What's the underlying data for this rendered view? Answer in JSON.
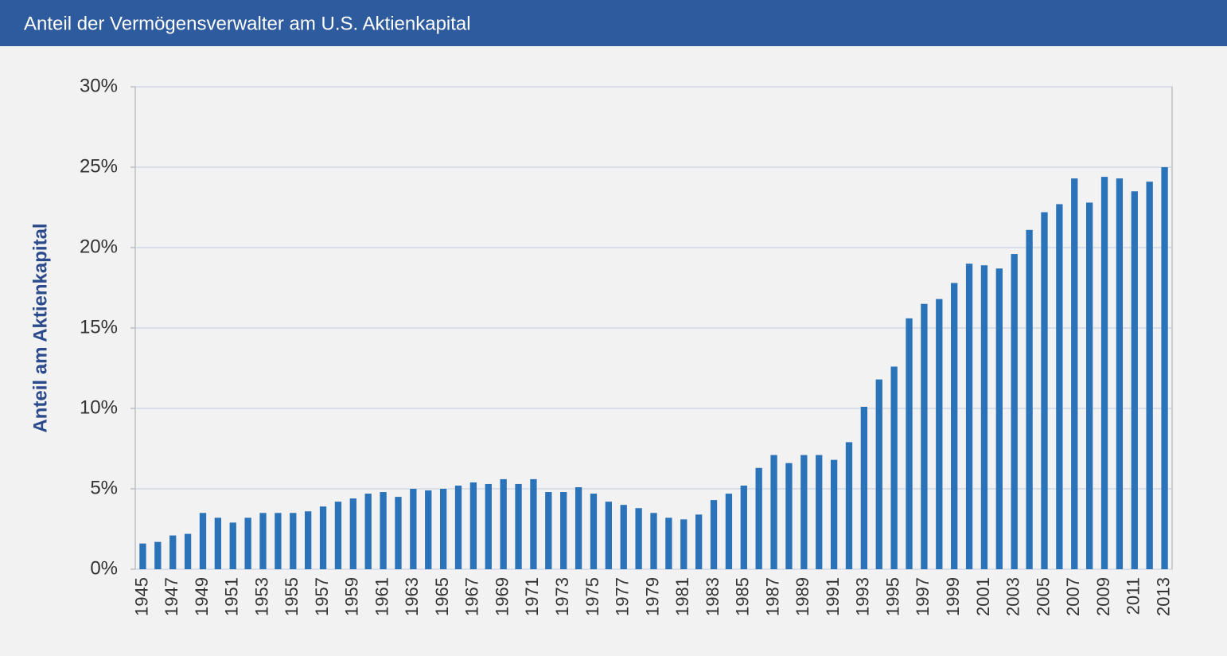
{
  "chart_data": {
    "type": "bar",
    "title": "Anteil der Vermögensverwalter am U.S. Aktienkapital",
    "y_label": "Anteil am Aktienkapital",
    "categories": [
      "1945",
      null,
      "1947",
      null,
      "1949",
      null,
      "1951",
      null,
      "1953",
      null,
      "1955",
      null,
      "1957",
      null,
      "1959",
      null,
      "1961",
      null,
      "1963",
      null,
      "1965",
      null,
      "1967",
      null,
      "1969",
      null,
      "1971",
      null,
      "1973",
      null,
      "1975",
      null,
      "1977",
      null,
      "1979",
      null,
      "1981",
      null,
      "1983",
      null,
      "1985",
      null,
      "1987",
      null,
      "1989",
      null,
      "1991",
      null,
      "1993",
      null,
      "1995",
      null,
      "1997",
      null,
      "1999",
      null,
      "2001",
      null,
      "2003",
      null,
      "2005",
      null,
      "2007",
      null,
      "2009",
      null,
      "2011",
      null,
      "2013"
    ],
    "values": [
      1.6,
      1.7,
      2.1,
      2.2,
      3.5,
      3.2,
      2.9,
      3.2,
      3.5,
      3.5,
      3.5,
      3.6,
      3.9,
      4.2,
      4.4,
      4.7,
      4.8,
      4.5,
      5.0,
      4.9,
      5.0,
      5.2,
      5.4,
      5.3,
      5.6,
      5.3,
      5.6,
      4.8,
      4.8,
      5.1,
      4.7,
      4.2,
      4.0,
      3.8,
      3.5,
      3.2,
      3.1,
      3.4,
      4.3,
      4.7,
      5.2,
      6.3,
      7.1,
      6.6,
      7.1,
      7.1,
      6.8,
      7.9,
      10.1,
      11.8,
      12.6,
      15.6,
      16.5,
      16.8,
      17.8,
      19.0,
      18.9,
      18.7,
      19.6,
      21.1,
      22.2,
      22.7,
      24.3,
      22.8,
      24.4,
      24.3,
      23.5,
      24.1,
      25.0
    ],
    "color": "#2a73b9",
    "ylim": [
      0,
      30
    ],
    "yticks": [
      {
        "value": 0,
        "label": "0%"
      },
      {
        "value": 5,
        "label": "5%"
      },
      {
        "value": 10,
        "label": "10%"
      },
      {
        "value": 15,
        "label": "15%"
      },
      {
        "value": 20,
        "label": "20%"
      },
      {
        "value": 25,
        "label": "25%"
      },
      {
        "value": 30,
        "label": "30%"
      }
    ],
    "grid": true
  }
}
